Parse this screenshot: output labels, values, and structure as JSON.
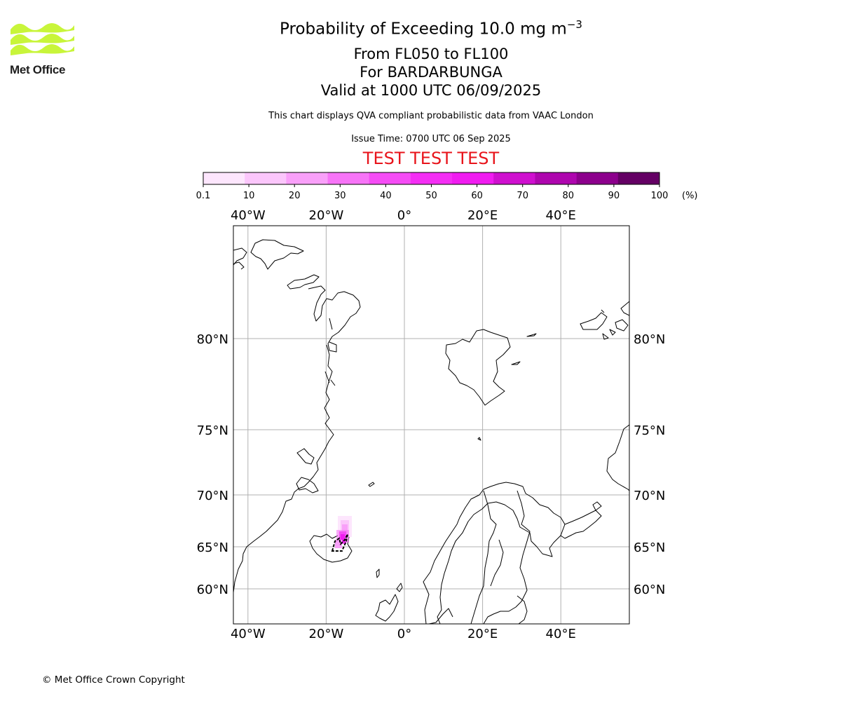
{
  "header": {
    "logo_text": "Met Office",
    "title_main": "Probability of Exceeding 10.0 mg m",
    "title_exponent": "−3",
    "title_levels": "From FL050 to FL100",
    "title_volcano": "For BARDARBUNGA",
    "title_valid": "Valid at 1000 UTC 06/09/2025",
    "disclaimer": "This chart displays QVA compliant probabilistic data from VAAC London",
    "issue_time": "Issue Time: 0700 UTC 06 Sep 2025",
    "test_banner": "TEST TEST TEST"
  },
  "colorbar": {
    "ticks": [
      "0.1",
      "10",
      "20",
      "30",
      "40",
      "50",
      "60",
      "70",
      "80",
      "90",
      "100"
    ],
    "unit": "(%)",
    "colors": [
      "#fde6fd",
      "#fbc6fb",
      "#f9a0f9",
      "#f774f7",
      "#f54cf5",
      "#f42ef4",
      "#f01cf0",
      "#cf10cf",
      "#ae06ae",
      "#8c008c",
      "#640064"
    ]
  },
  "map": {
    "lon_labels": [
      "40°W",
      "20°W",
      "0°",
      "20°E",
      "40°E"
    ],
    "lon_values": [
      -40,
      -20,
      0,
      20,
      40
    ],
    "lat_labels": [
      "80°N",
      "75°N",
      "70°N",
      "65°N",
      "60°N"
    ],
    "lat_values": [
      80,
      75,
      70,
      65,
      60
    ],
    "coastline_color": "#000000",
    "grid_color": "#b0b0b0",
    "plume_color": "#f01cf0"
  },
  "footer": {
    "copyright": "© Met Office Crown Copyright"
  }
}
